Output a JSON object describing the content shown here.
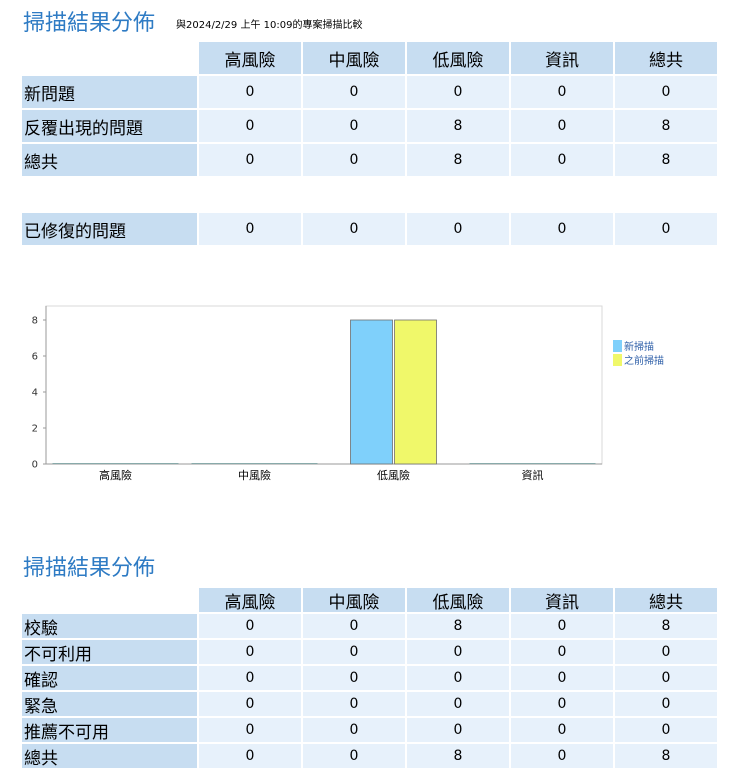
{
  "section1": {
    "title": "掃描結果分佈",
    "subtitle": "與2024/2/29 上午 10:09的專案掃描比較",
    "columns": [
      "高風險",
      "中風險",
      "低風險",
      "資訊",
      "總共"
    ],
    "rows": [
      {
        "label": "新問題",
        "values": [
          "0",
          "0",
          "0",
          "0",
          "0"
        ]
      },
      {
        "label": "反覆出現的問題",
        "values": [
          "0",
          "0",
          "8",
          "0",
          "8"
        ]
      },
      {
        "label": "總共",
        "values": [
          "0",
          "0",
          "8",
          "0",
          "8"
        ]
      }
    ],
    "fixed_row": {
      "label": "已修復的問題",
      "values": [
        "0",
        "0",
        "0",
        "0",
        "0"
      ]
    }
  },
  "chart_data": {
    "type": "bar",
    "categories": [
      "高風險",
      "中風險",
      "低風險",
      "資訊"
    ],
    "series": [
      {
        "name": "新掃描",
        "color": "#7fd0fb",
        "values": [
          0,
          0,
          8,
          0
        ]
      },
      {
        "name": "之前掃描",
        "color": "#f0f86a",
        "values": [
          0,
          0,
          8,
          0
        ]
      }
    ],
    "y_ticks": [
      "0",
      "2",
      "4",
      "6",
      "8"
    ],
    "ylim": [
      0,
      8
    ],
    "legend_position": "right",
    "grid": false
  },
  "section2": {
    "title": "掃描結果分佈",
    "columns": [
      "高風險",
      "中風險",
      "低風險",
      "資訊",
      "總共"
    ],
    "rows": [
      {
        "label": "校驗",
        "values": [
          "0",
          "0",
          "8",
          "0",
          "8"
        ]
      },
      {
        "label": "不可利用",
        "values": [
          "0",
          "0",
          "0",
          "0",
          "0"
        ]
      },
      {
        "label": "確認",
        "values": [
          "0",
          "0",
          "0",
          "0",
          "0"
        ]
      },
      {
        "label": "緊急",
        "values": [
          "0",
          "0",
          "0",
          "0",
          "0"
        ]
      },
      {
        "label": "推薦不可用",
        "values": [
          "0",
          "0",
          "0",
          "0",
          "0"
        ]
      },
      {
        "label": "總共",
        "values": [
          "0",
          "0",
          "8",
          "0",
          "8"
        ]
      }
    ]
  }
}
